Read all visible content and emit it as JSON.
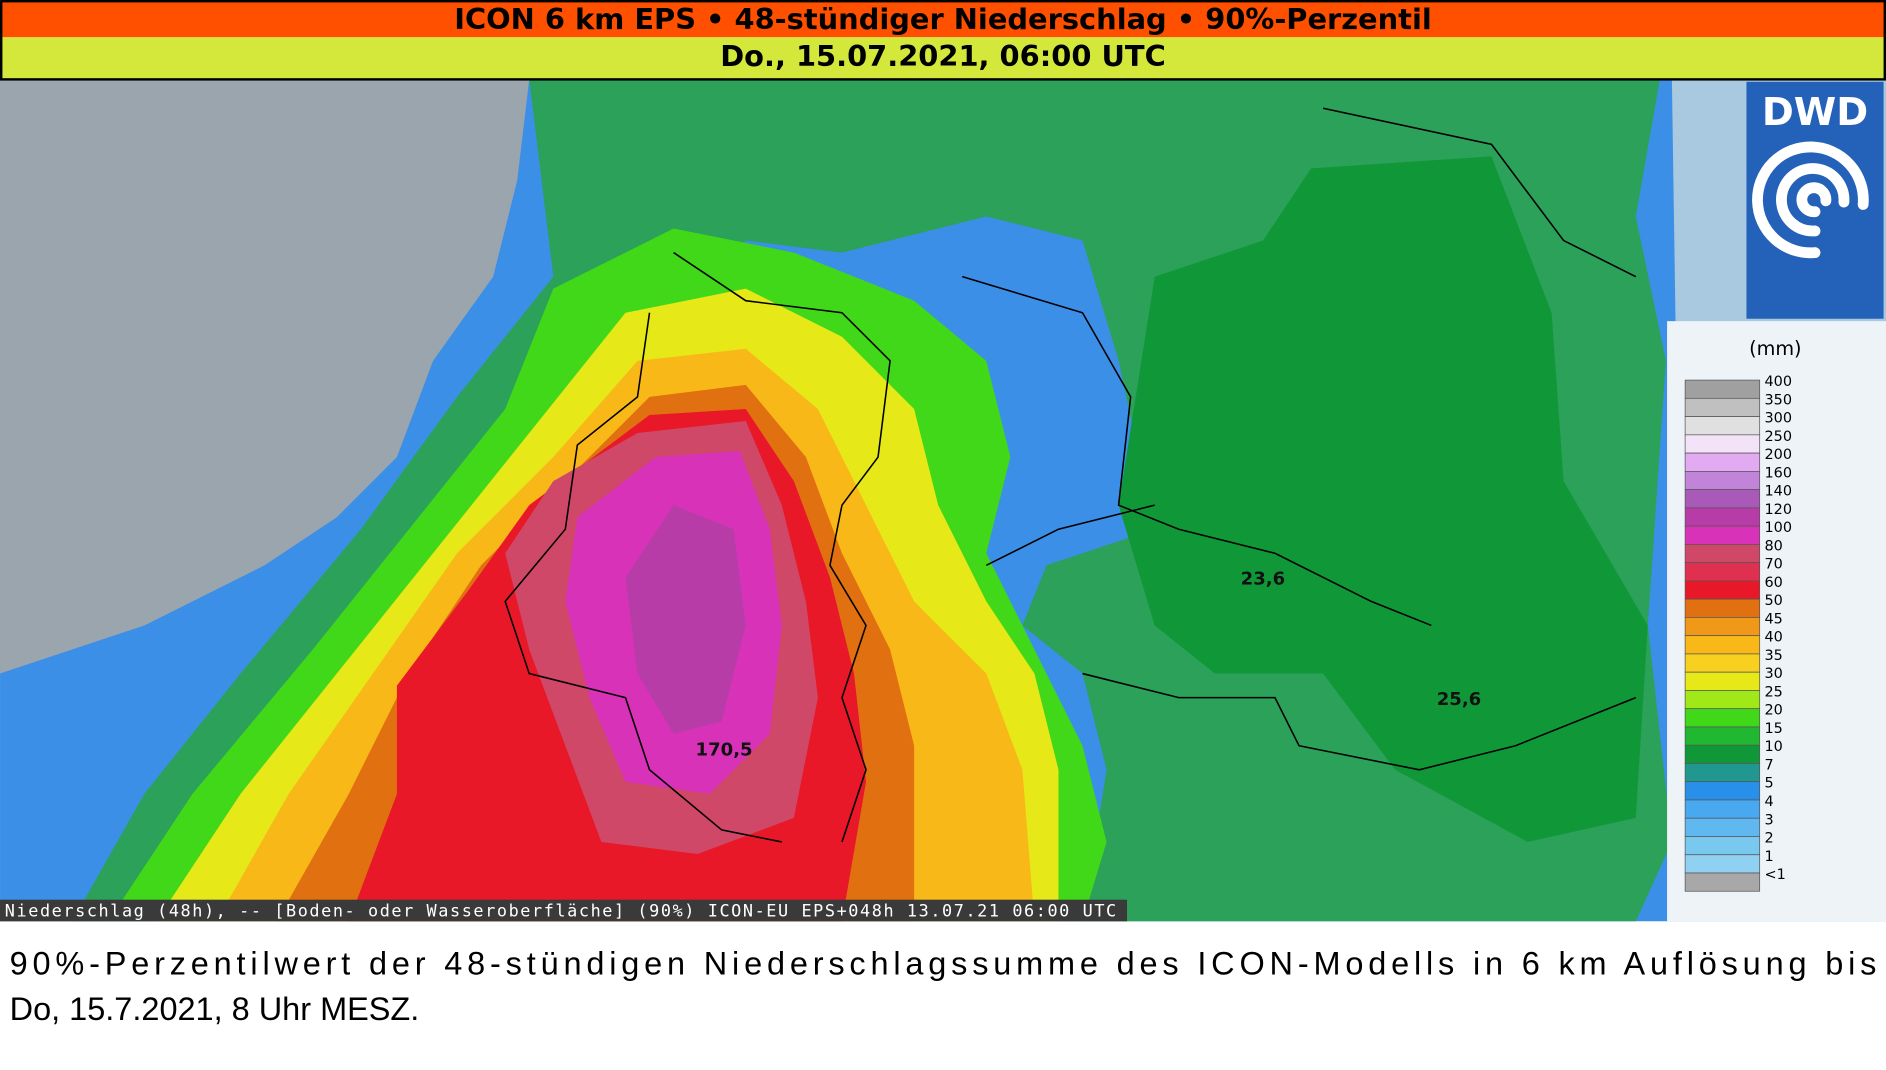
{
  "header": {
    "title": "ICON 6 km EPS • 48-stündiger Niederschlag • 90%-Perzentil",
    "subtitle": "Do., 15.07.2021, 06:00 UTC"
  },
  "logo": {
    "text": "DWD"
  },
  "legend": {
    "unit": "(mm)",
    "items": [
      {
        "label": "400",
        "color": "#a0a0a0"
      },
      {
        "label": "350",
        "color": "#c0c0c0"
      },
      {
        "label": "300",
        "color": "#e0e0e0"
      },
      {
        "label": "250",
        "color": "#f3e3f8"
      },
      {
        "label": "200",
        "color": "#e2aaf0"
      },
      {
        "label": "160",
        "color": "#c184d8"
      },
      {
        "label": "140",
        "color": "#a95ab8"
      },
      {
        "label": "120",
        "color": "#b83ca8"
      },
      {
        "label": "100",
        "color": "#d832b8"
      },
      {
        "label": "80",
        "color": "#d04868"
      },
      {
        "label": "70",
        "color": "#e03050"
      },
      {
        "label": "60",
        "color": "#e81828"
      },
      {
        "label": "50",
        "color": "#e07010"
      },
      {
        "label": "45",
        "color": "#f09818"
      },
      {
        "label": "40",
        "color": "#f8b818"
      },
      {
        "label": "35",
        "color": "#f8d020"
      },
      {
        "label": "30",
        "color": "#e6e818"
      },
      {
        "label": "25",
        "color": "#a0e818"
      },
      {
        "label": "20",
        "color": "#40d818"
      },
      {
        "label": "15",
        "color": "#20b830"
      },
      {
        "label": "10",
        "color": "#109838"
      },
      {
        "label": "7",
        "color": "#209890"
      },
      {
        "label": "5",
        "color": "#2890e8"
      },
      {
        "label": "4",
        "color": "#48a8f0"
      },
      {
        "label": "3",
        "color": "#60b8f0"
      },
      {
        "label": "2",
        "color": "#78c8f0"
      },
      {
        "label": "1",
        "color": "#90d0f0"
      },
      {
        "label": "<1",
        "color": "#a8a8a8"
      }
    ]
  },
  "map": {
    "labels": [
      {
        "text": "170,5"
      },
      {
        "text": "23,6"
      },
      {
        "text": "25,6"
      }
    ]
  },
  "footer": "Niederschlag (48h), -- [Boden- oder Wasseroberfläche] (90%) ICON-EU  EPS+048h  13.07.21 06:00 UTC",
  "caption": {
    "lines": [
      "90%-Perzentilwert der 48-stündigen Niederschlagssumme des ICON-Modells in 6 km Auflösung bis",
      "Do, 15.7.2021, 8 Uhr MESZ."
    ]
  }
}
